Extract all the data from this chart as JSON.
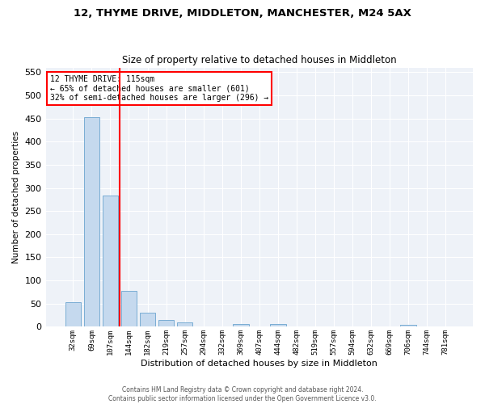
{
  "title_line1": "12, THYME DRIVE, MIDDLETON, MANCHESTER, M24 5AX",
  "title_line2": "Size of property relative to detached houses in Middleton",
  "xlabel": "Distribution of detached houses by size in Middleton",
  "ylabel": "Number of detached properties",
  "categories": [
    "32sqm",
    "69sqm",
    "107sqm",
    "144sqm",
    "182sqm",
    "219sqm",
    "257sqm",
    "294sqm",
    "332sqm",
    "369sqm",
    "407sqm",
    "444sqm",
    "482sqm",
    "519sqm",
    "557sqm",
    "594sqm",
    "632sqm",
    "669sqm",
    "706sqm",
    "744sqm",
    "781sqm"
  ],
  "values": [
    53,
    452,
    283,
    77,
    31,
    14,
    10,
    0,
    0,
    6,
    0,
    6,
    0,
    0,
    0,
    0,
    0,
    0,
    5,
    0,
    0
  ],
  "bar_color": "#c5d9ee",
  "bar_edge_color": "#7aadd4",
  "annotation_title": "12 THYME DRIVE: 115sqm",
  "annotation_line1": "← 65% of detached houses are smaller (601)",
  "annotation_line2": "32% of semi-detached houses are larger (296) →",
  "annotation_box_color": "white",
  "annotation_box_edge_color": "red",
  "vline_color": "red",
  "vline_x_index": 2,
  "ylim": [
    0,
    560
  ],
  "yticks": [
    0,
    50,
    100,
    150,
    200,
    250,
    300,
    350,
    400,
    450,
    500,
    550
  ],
  "background_color": "#eef2f8",
  "grid_color": "white",
  "footer_line1": "Contains HM Land Registry data © Crown copyright and database right 2024.",
  "footer_line2": "Contains public sector information licensed under the Open Government Licence v3.0."
}
